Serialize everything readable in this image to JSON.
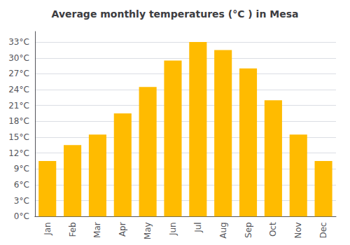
{
  "chart_data": {
    "type": "bar",
    "title": "Average monthly temperatures (°C ) in Mesa",
    "categories": [
      "Jan",
      "Feb",
      "Mar",
      "Apr",
      "May",
      "Jun",
      "Jul",
      "Aug",
      "Sep",
      "Oct",
      "Nov",
      "Dec"
    ],
    "values": [
      10.5,
      13.5,
      15.5,
      19.5,
      24.5,
      29.5,
      33.0,
      31.5,
      28.0,
      22.0,
      15.5,
      10.5
    ],
    "color": "#FFBB00",
    "ylim": [
      0,
      35
    ],
    "yticks": [
      {
        "value": 0,
        "label": "0°C"
      },
      {
        "value": 3,
        "label": "3°C"
      },
      {
        "value": 6,
        "label": "6°C"
      },
      {
        "value": 9,
        "label": "9°C"
      },
      {
        "value": 12,
        "label": "12°C"
      },
      {
        "value": 15,
        "label": "15°C"
      },
      {
        "value": 18,
        "label": "18°C"
      },
      {
        "value": 21,
        "label": "21°C"
      },
      {
        "value": 24,
        "label": "24°C"
      },
      {
        "value": 27,
        "label": "27°C"
      },
      {
        "value": 30,
        "label": "30°C"
      },
      {
        "value": 33,
        "label": "33°C"
      }
    ],
    "grid": true
  }
}
